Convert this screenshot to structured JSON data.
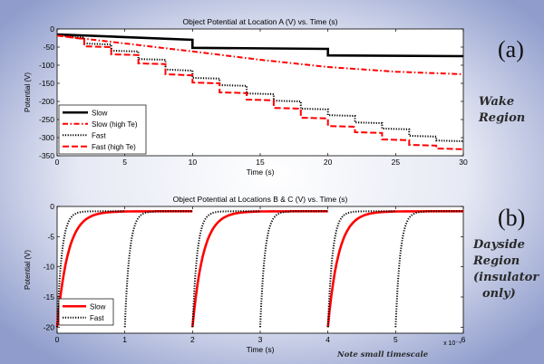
{
  "colors": {
    "background_center": "#ffffff",
    "background_edge": "#8f9ccc",
    "black": "#000000",
    "red": "#ff0000"
  },
  "labels": {
    "a": "(a)",
    "b": "(b)",
    "wake": [
      "Wake",
      "Region"
    ],
    "dayside": [
      "Dayside",
      "Region",
      "(insulator",
      "only)"
    ],
    "note": "Note small timescale"
  },
  "chart_data": [
    {
      "type": "line",
      "title": "Object Potential at Location A (V) vs. Time (s)",
      "xlabel": "Time (s)",
      "ylabel": "Potential (V)",
      "xlim": [
        0,
        30
      ],
      "ylim": [
        -350,
        0
      ],
      "xticks": [
        0,
        5,
        10,
        15,
        20,
        25,
        30
      ],
      "yticks": [
        0,
        -50,
        -100,
        -150,
        -200,
        -250,
        -300,
        -350
      ],
      "legend_position": "bottom-left",
      "series": [
        {
          "name": "Slow",
          "style": "solid-thick",
          "color": "#000000",
          "x": [
            0,
            10,
            10,
            20,
            20,
            30
          ],
          "y": [
            -15,
            -30,
            -52,
            -55,
            -73,
            -75
          ]
        },
        {
          "name": "Slow (high Te)",
          "style": "dashdot",
          "color": "#ff0000",
          "x": [
            0,
            5,
            10,
            15,
            20,
            25,
            30
          ],
          "y": [
            -18,
            -40,
            -62,
            -85,
            -105,
            -118,
            -125
          ]
        },
        {
          "name": "Fast",
          "style": "dotted",
          "color": "#000000",
          "x": [
            0,
            2,
            2,
            4,
            4,
            6,
            6,
            8,
            8,
            10,
            10,
            12,
            12,
            14,
            14,
            16,
            16,
            18,
            18,
            20,
            20,
            22,
            22,
            24,
            24,
            26,
            26,
            28,
            28,
            30
          ],
          "y": [
            -15,
            -24,
            -40,
            -43,
            -60,
            -62,
            -83,
            -85,
            -112,
            -115,
            -135,
            -137,
            -155,
            -157,
            -178,
            -180,
            -198,
            -200,
            -220,
            -222,
            -238,
            -240,
            -258,
            -260,
            -275,
            -277,
            -295,
            -297,
            -308,
            -310
          ]
        },
        {
          "name": "Fast (high Te)",
          "style": "dashed",
          "color": "#ff0000",
          "x": [
            0,
            2,
            2,
            4,
            4,
            6,
            6,
            8,
            8,
            10,
            10,
            12,
            12,
            14,
            14,
            16,
            16,
            18,
            18,
            20,
            20,
            22,
            22,
            24,
            24,
            26,
            26,
            28,
            28,
            30
          ],
          "y": [
            -18,
            -28,
            -48,
            -50,
            -70,
            -72,
            -95,
            -97,
            -125,
            -128,
            -148,
            -150,
            -175,
            -177,
            -195,
            -197,
            -218,
            -220,
            -245,
            -247,
            -268,
            -270,
            -285,
            -287,
            -305,
            -307,
            -320,
            -322,
            -330,
            -332
          ]
        }
      ]
    },
    {
      "type": "line",
      "title": "Object Potential at Locations B & C (V) vs. Time (s)",
      "xlabel": "Time (s)",
      "ylabel": "Potential (V)",
      "xlim": [
        0,
        6
      ],
      "ylim": [
        -21,
        0
      ],
      "xticks": [
        0,
        1,
        2,
        3,
        4,
        5,
        6
      ],
      "yticks": [
        0,
        -5,
        -10,
        -15,
        -20
      ],
      "x_multiplier": "x 10⁻⁴",
      "legend_position": "bottom-left",
      "series": [
        {
          "name": "Slow",
          "style": "solid-thick",
          "color": "#ff0000",
          "cycle_starts": [
            0,
            2,
            4
          ],
          "cycle_length": 2,
          "start_value": -20,
          "end_value": -0.8,
          "tau": 0.16
        },
        {
          "name": "Fast",
          "style": "dotted",
          "color": "#000000",
          "cycle_starts": [
            0,
            1,
            2,
            3,
            4,
            5
          ],
          "cycle_length": 1,
          "start_value": -20,
          "end_value": -0.8,
          "tau": 0.07
        }
      ]
    }
  ]
}
